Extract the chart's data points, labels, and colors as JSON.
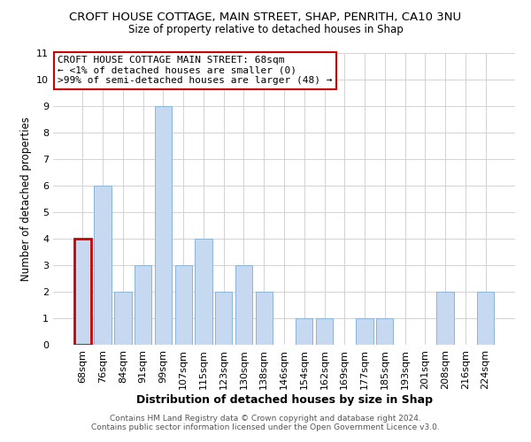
{
  "title": "CROFT HOUSE COTTAGE, MAIN STREET, SHAP, PENRITH, CA10 3NU",
  "subtitle": "Size of property relative to detached houses in Shap",
  "xlabel": "Distribution of detached houses by size in Shap",
  "ylabel": "Number of detached properties",
  "bar_labels": [
    "68sqm",
    "76sqm",
    "84sqm",
    "91sqm",
    "99sqm",
    "107sqm",
    "115sqm",
    "123sqm",
    "130sqm",
    "138sqm",
    "146sqm",
    "154sqm",
    "162sqm",
    "169sqm",
    "177sqm",
    "185sqm",
    "193sqm",
    "201sqm",
    "208sqm",
    "216sqm",
    "224sqm"
  ],
  "bar_values": [
    4,
    6,
    2,
    3,
    9,
    3,
    4,
    2,
    3,
    2,
    0,
    1,
    1,
    0,
    1,
    1,
    0,
    0,
    2,
    0,
    2
  ],
  "bar_color": "#c6d9f0",
  "bar_edge_color": "#8ab4d8",
  "highlight_bar_index": 0,
  "highlight_color": "#cc0000",
  "annotation_box_text": "CROFT HOUSE COTTAGE MAIN STREET: 68sqm\n← <1% of detached houses are smaller (0)\n>99% of semi-detached houses are larger (48) →",
  "annotation_box_facecolor": "#ffffff",
  "annotation_box_edgecolor": "#cc0000",
  "ylim": [
    0,
    11
  ],
  "yticks": [
    0,
    1,
    2,
    3,
    4,
    5,
    6,
    7,
    8,
    9,
    10,
    11
  ],
  "footer_line1": "Contains HM Land Registry data © Crown copyright and database right 2024.",
  "footer_line2": "Contains public sector information licensed under the Open Government Licence v3.0.",
  "background_color": "#ffffff",
  "grid_color": "#cccccc",
  "title_fontsize": 9.5,
  "subtitle_fontsize": 8.5,
  "xlabel_fontsize": 9,
  "ylabel_fontsize": 8.5,
  "tick_fontsize": 8,
  "annot_fontsize": 8,
  "footer_fontsize": 6.5
}
